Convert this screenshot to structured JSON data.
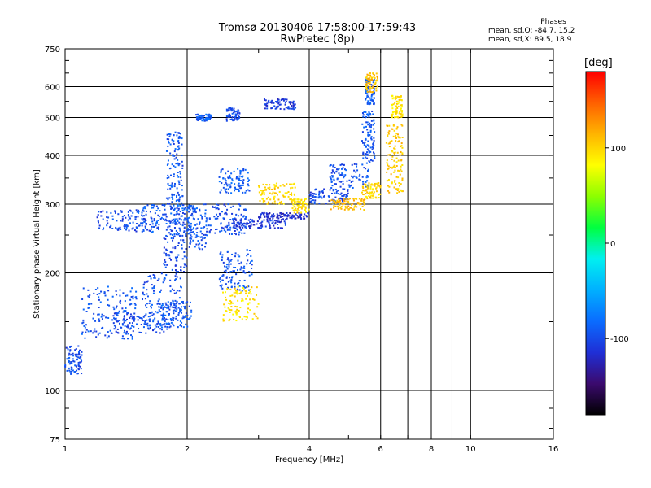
{
  "title": {
    "line1": "Tromsø 20130406 17:58:00-17:59:43",
    "line2": "RwPretec (8p)"
  },
  "phases_box": {
    "heading": "Phases",
    "line_o": "mean, sd,O: -84.7, 15.2",
    "line_x": "mean, sd,X:  89.5, 18.9"
  },
  "colorbar": {
    "label": "[deg]",
    "ticks": [
      {
        "value": 100,
        "label": "100"
      },
      {
        "value": 0,
        "label": "0"
      },
      {
        "value": -100,
        "label": "-100"
      }
    ],
    "range": [
      -180,
      180
    ],
    "colors": [
      "#000000",
      "#3b0a6e",
      "#1f2fd6",
      "#0a6cff",
      "#00b0ff",
      "#00f0f0",
      "#00ff40",
      "#8cff00",
      "#ffff00",
      "#ffb400",
      "#ff6000",
      "#ff0000"
    ]
  },
  "chart_data": {
    "type": "scatter",
    "xlabel": "Frequency [MHz]",
    "ylabel": "Stationary phase Virtual Height [km]",
    "xscale": "log",
    "yscale": "log",
    "xlim": [
      1,
      16
    ],
    "ylim": [
      75,
      750
    ],
    "grid": true,
    "xticks": [
      {
        "value": 1,
        "label": "1"
      },
      {
        "value": 2,
        "label": "2"
      },
      {
        "value": 4,
        "label": "4"
      },
      {
        "value": 6,
        "label": "6"
      },
      {
        "value": 8,
        "label": "8"
      },
      {
        "value": 10,
        "label": "10"
      },
      {
        "value": 16,
        "label": "16"
      }
    ],
    "xgrid": [
      2,
      4,
      6,
      7,
      8,
      9,
      10
    ],
    "yticks": [
      {
        "value": 75,
        "label": "75"
      },
      {
        "value": 100,
        "label": "100"
      },
      {
        "value": 200,
        "label": "200"
      },
      {
        "value": 300,
        "label": "300"
      },
      {
        "value": 400,
        "label": "400"
      },
      {
        "value": 500,
        "label": "500"
      },
      {
        "value": 600,
        "label": "600"
      },
      {
        "value": 750,
        "label": "750"
      }
    ],
    "ygrid": [
      100,
      200,
      300,
      400,
      500,
      600
    ],
    "clusters": [
      {
        "f": [
          1.0,
          1.1
        ],
        "h": [
          110,
          130
        ],
        "phase": -100
      },
      {
        "f": [
          1.1,
          1.5
        ],
        "h": [
          135,
          185
        ],
        "phase": -95
      },
      {
        "f": [
          1.3,
          1.8
        ],
        "h": [
          140,
          160
        ],
        "phase": -100
      },
      {
        "f": [
          1.55,
          1.95
        ],
        "h": [
          145,
          200
        ],
        "phase": -95
      },
      {
        "f": [
          1.7,
          2.05
        ],
        "h": [
          145,
          170
        ],
        "phase": -90
      },
      {
        "f": [
          1.75,
          2.0
        ],
        "h": [
          200,
          300
        ],
        "phase": -100
      },
      {
        "f": [
          1.78,
          1.95
        ],
        "h": [
          300,
          460
        ],
        "phase": -95
      },
      {
        "f": [
          1.5,
          2.1
        ],
        "h": [
          250,
          300
        ],
        "phase": -90
      },
      {
        "f": [
          1.2,
          1.7
        ],
        "h": [
          255,
          290
        ],
        "phase": -100
      },
      {
        "f": [
          2.0,
          2.25
        ],
        "h": [
          230,
          300
        ],
        "phase": -95
      },
      {
        "f": [
          2.25,
          2.8
        ],
        "h": [
          250,
          300
        ],
        "phase": -100
      },
      {
        "f": [
          2.4,
          2.85
        ],
        "h": [
          320,
          370
        ],
        "phase": -90
      },
      {
        "f": [
          2.6,
          3.5
        ],
        "h": [
          260,
          275
        ],
        "phase": -110
      },
      {
        "f": [
          2.5,
          2.7
        ],
        "h": [
          490,
          530
        ],
        "phase": -100
      },
      {
        "f": [
          3.1,
          3.7
        ],
        "h": [
          525,
          560
        ],
        "phase": -110
      },
      {
        "f": [
          3.0,
          4.0
        ],
        "h": [
          275,
          285
        ],
        "phase": -120
      },
      {
        "f": [
          4.0,
          5.0
        ],
        "h": [
          300,
          330
        ],
        "phase": -100
      },
      {
        "f": [
          4.5,
          5.6
        ],
        "h": [
          330,
          380
        ],
        "phase": -95
      },
      {
        "f": [
          5.4,
          5.8
        ],
        "h": [
          380,
          520
        ],
        "phase": -95
      },
      {
        "f": [
          5.5,
          5.8
        ],
        "h": [
          540,
          630
        ],
        "phase": -90
      },
      {
        "f": [
          2.1,
          2.3
        ],
        "h": [
          490,
          510
        ],
        "phase": -90
      },
      {
        "f": [
          2.4,
          2.9
        ],
        "h": [
          180,
          230
        ],
        "phase": -95
      },
      {
        "f": [
          2.45,
          3.0
        ],
        "h": [
          150,
          185
        ],
        "phase": 95
      },
      {
        "f": [
          3.0,
          3.7
        ],
        "h": [
          300,
          340
        ],
        "phase": 100
      },
      {
        "f": [
          3.6,
          4.0
        ],
        "h": [
          285,
          310
        ],
        "phase": 95
      },
      {
        "f": [
          4.5,
          5.5
        ],
        "h": [
          290,
          310
        ],
        "phase": 110
      },
      {
        "f": [
          5.4,
          6.0
        ],
        "h": [
          310,
          340
        ],
        "phase": 100
      },
      {
        "f": [
          6.2,
          6.8
        ],
        "h": [
          320,
          480
        ],
        "phase": 105
      },
      {
        "f": [
          6.4,
          6.8
        ],
        "h": [
          500,
          570
        ],
        "phase": 95
      },
      {
        "f": [
          5.5,
          5.9
        ],
        "h": [
          580,
          650
        ],
        "phase": 110
      }
    ]
  }
}
